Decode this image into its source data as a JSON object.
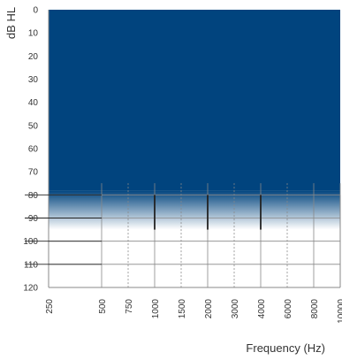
{
  "chart_data": {
    "type": "area",
    "ylabel": "dB HL",
    "xlabel": "Frequency (Hz)",
    "y_ticks": [
      0,
      10,
      20,
      30,
      40,
      50,
      60,
      70,
      80,
      90,
      100,
      110,
      120
    ],
    "ylim": [
      0,
      120
    ],
    "y_inverted": true,
    "x_ticks": [
      "250",
      "500",
      "750",
      "1000",
      "1500",
      "2000",
      "3000",
      "4000",
      "6000",
      "8000",
      "10000"
    ],
    "octave_frequencies": [
      "250",
      "500",
      "1000",
      "2000",
      "4000",
      "8000",
      "10000"
    ],
    "interoctave_frequencies": [
      "750",
      "1500",
      "3000",
      "6000"
    ],
    "shaded_region": {
      "label": "",
      "solid_from_db": 0,
      "solid_to_db": 78,
      "fade_to_db": 95,
      "color": "#01447e"
    },
    "markers": [
      {
        "frequency": "1000",
        "from_db": 80,
        "to_db": 95
      },
      {
        "frequency": "2000",
        "from_db": 80,
        "to_db": 95
      },
      {
        "frequency": "4000",
        "from_db": 80,
        "to_db": 95
      }
    ],
    "left_margin_segments_db": [
      80,
      90,
      100,
      110
    ],
    "grid": true,
    "colors": {
      "fill": "#01447e",
      "grid": "#888888",
      "marker": "#222222"
    }
  }
}
